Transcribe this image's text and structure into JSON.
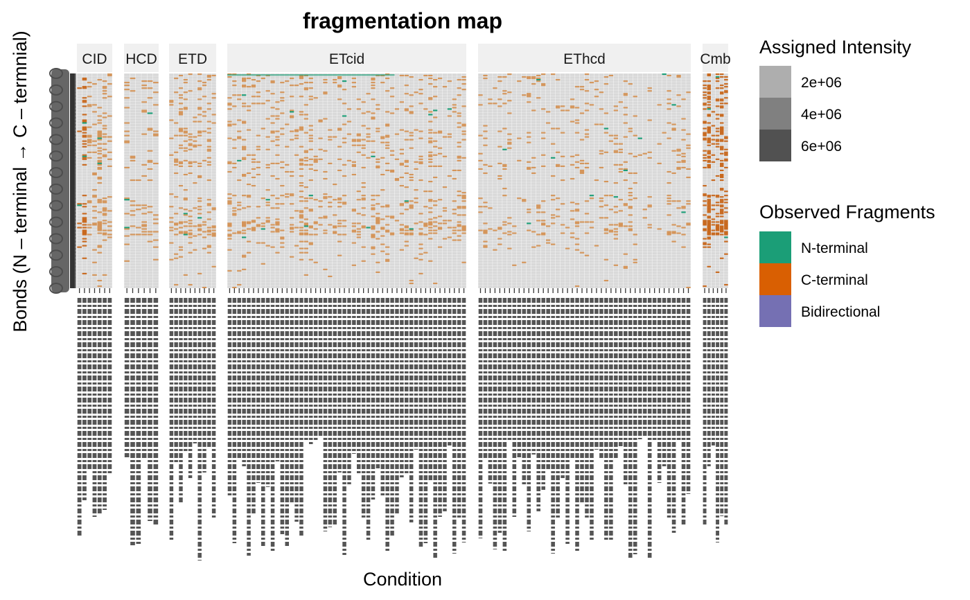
{
  "chart_data": {
    "type": "heatmap",
    "title": "fragmentation map",
    "xlabel": "Condition",
    "ylabel": "Bonds (N – terminal → C – termnial)",
    "facets": [
      {
        "name": "CID",
        "n_conditions": 7
      },
      {
        "name": "HCD",
        "n_conditions": 6
      },
      {
        "name": "ETD",
        "n_conditions": 10
      },
      {
        "name": "ETcid",
        "n_conditions": 50
      },
      {
        "name": "EThcd",
        "n_conditions": 44
      },
      {
        "name": "Cmb",
        "n_conditions": 6
      }
    ],
    "n_bonds": 154,
    "legend_intensity": {
      "title": "Assigned Intensity",
      "entries": [
        {
          "label": "2e+06",
          "color": "#aeaeae"
        },
        {
          "label": "4e+06",
          "color": "#808080"
        },
        {
          "label": "6e+06",
          "color": "#515151"
        }
      ]
    },
    "legend_fragments": {
      "title": "Observed Fragments",
      "entries": [
        {
          "label": "N-terminal",
          "color": "#1b9e77"
        },
        {
          "label": "C-terminal",
          "color": "#d95f02"
        },
        {
          "label": "Bidirectional",
          "color": "#7570b3"
        }
      ]
    },
    "colors": {
      "panel": "#d9d9d9",
      "grid": "#ffffff",
      "strip": "#f0f0f0",
      "c_terminal_light": "#d4955a",
      "c_terminal": "#c8691f",
      "n_terminal": "#1b9e77"
    }
  }
}
